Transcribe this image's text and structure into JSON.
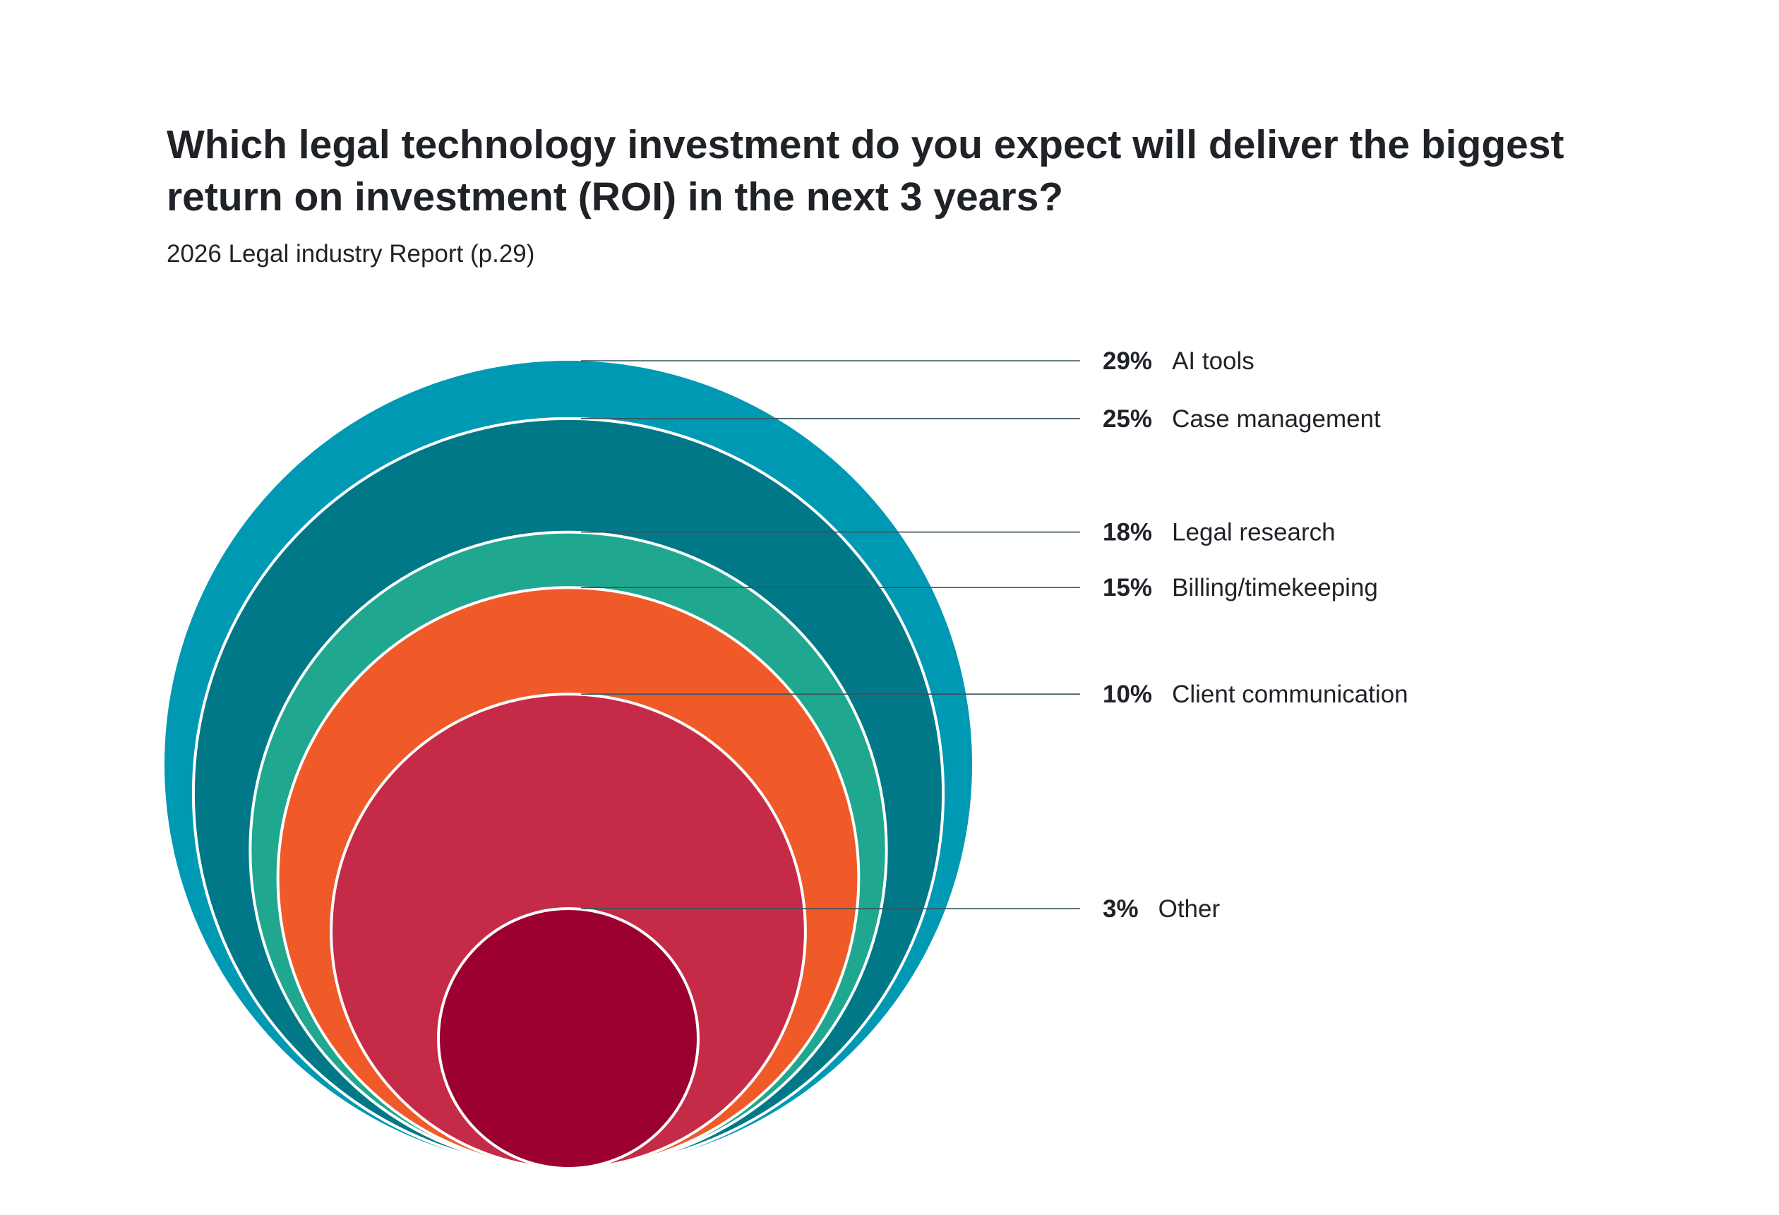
{
  "chart_data": {
    "type": "nested-bubble",
    "title": "Which legal technology investment do you expect will deliver the biggest return on investment (ROI) in the next 3 years?",
    "subtitle": "2026 Legal industry Report (p.29)",
    "unit": "%",
    "series": [
      {
        "label": "AI tools",
        "value": 29,
        "display": "29%",
        "color": "#0099b4"
      },
      {
        "label": "Case management",
        "value": 25,
        "display": "25%",
        "color": "#007888"
      },
      {
        "label": "Legal research",
        "value": 18,
        "display": "18%",
        "color": "#1fa78f"
      },
      {
        "label": "Billing/timekeeping",
        "value": 15,
        "display": "15%",
        "color": "#f05a28"
      },
      {
        "label": "Client communication",
        "value": 10,
        "display": "10%",
        "color": "#c52b47"
      },
      {
        "label": "Other",
        "value": 3,
        "display": "3%",
        "color": "#9c0030"
      }
    ]
  }
}
